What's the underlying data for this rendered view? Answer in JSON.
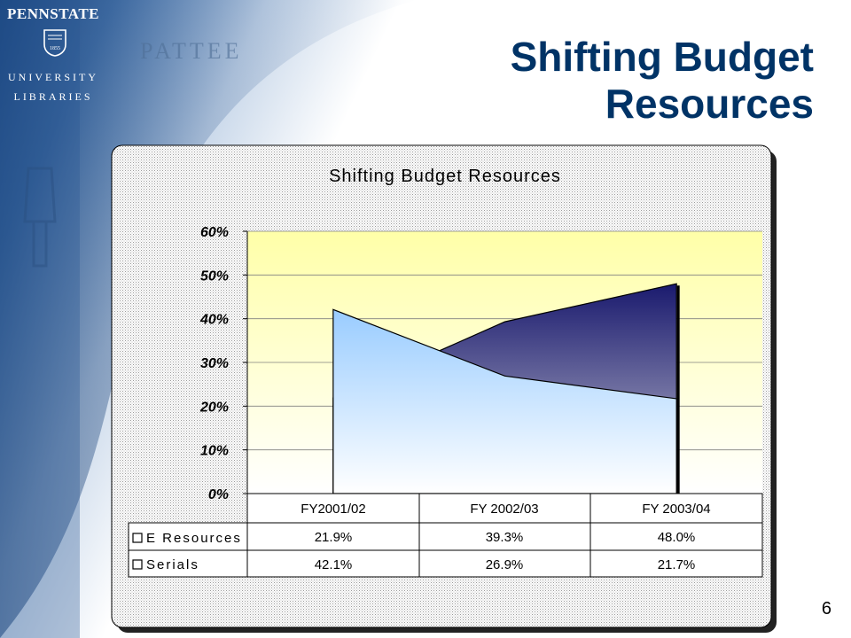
{
  "slide": {
    "title_line1": "Shifting Budget",
    "title_line2": "Resources",
    "page_number": "6"
  },
  "logo": {
    "pennstate": "PENNSTATE",
    "university": "UNIVERSITY",
    "libraries": "LIBRARIES",
    "seal_year": "1855"
  },
  "colors": {
    "title": "#003366",
    "plot_bg_top": "#ffffa8",
    "plot_bg_bottom": "#ffffff",
    "serials_top": "#99ccff",
    "serials_bottom": "#ffffff",
    "eresources_top": "#1a1a6e",
    "eresources_bottom": "#c0c0d0"
  },
  "chart_data": {
    "type": "area",
    "title": "Shifting Budget Resources",
    "categories": [
      "FY2001/02",
      "FY 2002/03",
      "FY 2003/04"
    ],
    "series": [
      {
        "name": "E Resources",
        "values": [
          0.219,
          0.393,
          0.48
        ],
        "labels": [
          "21.9%",
          "39.3%",
          "48.0%"
        ]
      },
      {
        "name": "Serials",
        "values": [
          0.421,
          0.269,
          0.217
        ],
        "labels": [
          "42.1%",
          "26.9%",
          "21.7%"
        ]
      }
    ],
    "ylim": [
      0,
      0.6
    ],
    "yticks": [
      0,
      0.1,
      0.2,
      0.3,
      0.4,
      0.5,
      0.6
    ],
    "ytick_labels": [
      "0%",
      "10%",
      "20%",
      "30%",
      "40%",
      "50%",
      "60%"
    ],
    "grid": true,
    "data_table": true
  }
}
